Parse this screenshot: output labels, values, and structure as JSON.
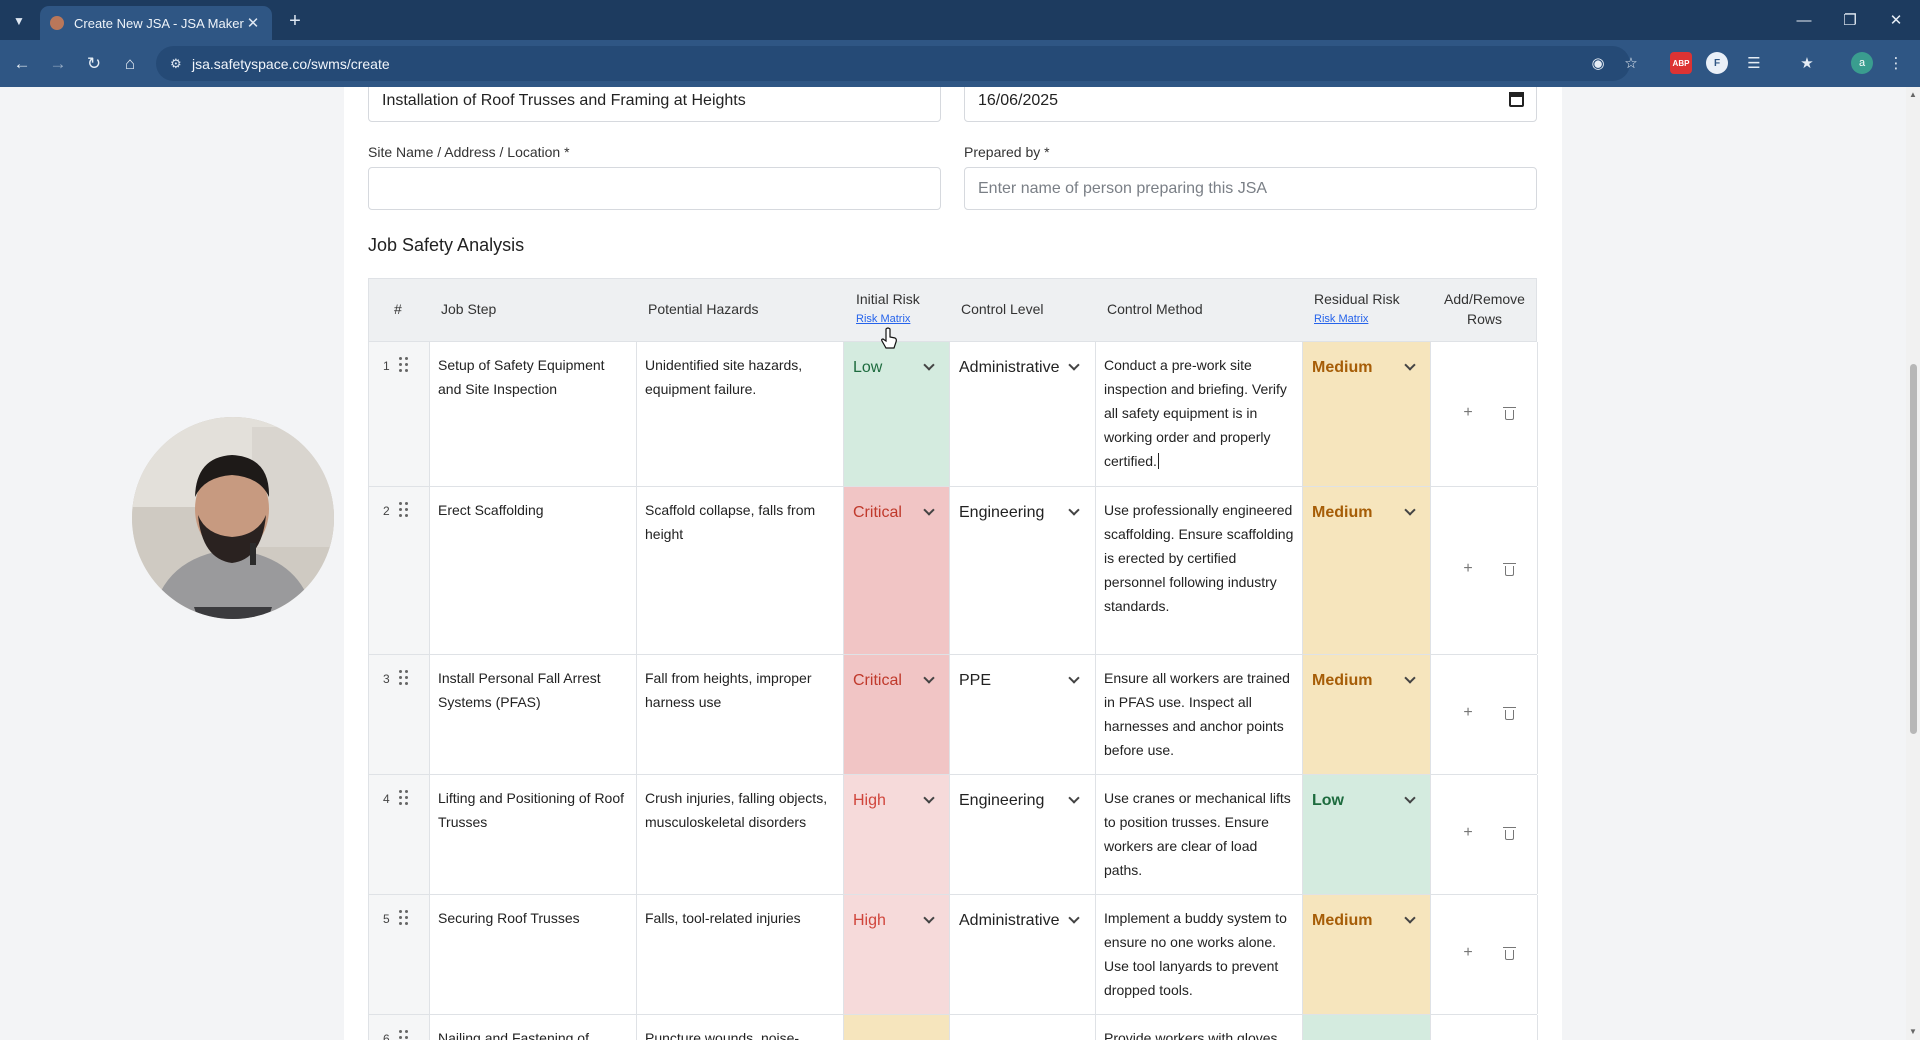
{
  "browser": {
    "tab_title": "Create New JSA - JSA Maker",
    "url": "jsa.safetyspace.co/swms/create",
    "profile_initial": "a"
  },
  "form": {
    "job_title_value": "Installation of Roof Trusses and Framing at Heights",
    "date_value": "16/06/2025",
    "site_label": "Site Name / Address / Location *",
    "site_value": "",
    "prepared_label": "Prepared by *",
    "prepared_placeholder": "Enter name of person preparing this JSA"
  },
  "jsa": {
    "section_title": "Job Safety Analysis",
    "headers": {
      "num": "#",
      "job_step": "Job Step",
      "hazards": "Potential Hazards",
      "initial_risk": "Initial Risk",
      "initial_link": "Risk Matrix",
      "control_level": "Control Level",
      "control_method": "Control Method",
      "residual_risk": "Residual Risk",
      "residual_link": "Risk Matrix",
      "actions_line1": "Add/Remove",
      "actions_line2": "Rows"
    },
    "rows": [
      {
        "num": "1",
        "job_step": "Setup of Safety Equipment and Site Inspection",
        "hazards": "Unidentified site hazards, equipment failure.",
        "initial_risk": "Low",
        "control_level": "Administrative",
        "control_method": "Conduct a pre-work site inspection and briefing. Verify all safety equipment is in working order and properly certified.",
        "residual_risk": "Medium"
      },
      {
        "num": "2",
        "job_step": "Erect Scaffolding",
        "hazards": "Scaffold collapse, falls from height",
        "initial_risk": "Critical",
        "control_level": "Engineering",
        "control_method": "Use professionally engineered scaffolding. Ensure scaffolding is erected by certified personnel following industry standards.",
        "residual_risk": "Medium"
      },
      {
        "num": "3",
        "job_step": "Install Personal Fall Arrest Systems (PFAS)",
        "hazards": "Fall from heights, improper harness use",
        "initial_risk": "Critical",
        "control_level": "PPE",
        "control_method": "Ensure all workers are trained in PFAS use. Inspect all harnesses and anchor points before use.",
        "residual_risk": "Medium"
      },
      {
        "num": "4",
        "job_step": "Lifting and Positioning of Roof Trusses",
        "hazards": "Crush injuries, falling objects, musculoskeletal disorders",
        "initial_risk": "High",
        "control_level": "Engineering",
        "control_method": "Use cranes or mechanical lifts to position trusses. Ensure workers are clear of load paths.",
        "residual_risk": "Low"
      },
      {
        "num": "5",
        "job_step": "Securing Roof Trusses",
        "hazards": "Falls, tool-related injuries",
        "initial_risk": "High",
        "control_level": "Administrative",
        "control_method": "Implement a buddy system to ensure no one works alone. Use tool lanyards to prevent dropped tools.",
        "residual_risk": "Medium"
      },
      {
        "num": "6",
        "job_step": "Nailing and Fastening of",
        "hazards": "Puncture wounds, noise-",
        "initial_risk": "",
        "control_level": "",
        "control_method": "Provide workers with gloves",
        "residual_risk": ""
      }
    ]
  },
  "colors": {
    "low_bg": "#d4ebdf",
    "low_text": "#1d6b3e",
    "critical_bg": "#f1c5c5",
    "critical_text": "#c0392b",
    "high_bg": "#f6dada",
    "high_text": "#d0453b",
    "medium_bg": "#f6e5bd",
    "medium_text": "#a65d07"
  }
}
